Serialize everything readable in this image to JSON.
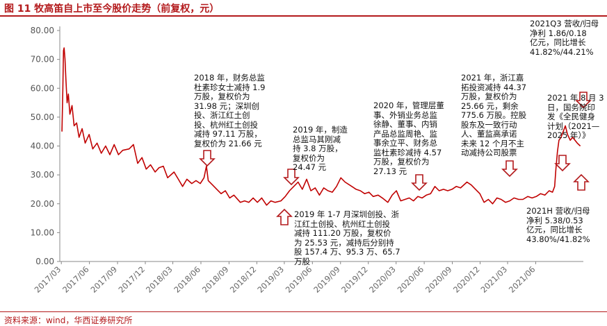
{
  "title": "图 11  牧高笛自上市至今股价走势（前复权，元）",
  "source": "资料来源：wind，华西证券研究所",
  "colors": {
    "accent": "#b3191b",
    "line": "#c00000",
    "axis": "#888888",
    "grid": "#d9d9d9"
  },
  "annotations": [
    {
      "id": "ann-2018",
      "text": "2018 年，财务总监\n杜素珍女士减持 1.9\n万股，复权价为\n31.98 元；深圳创\n投、浙江红土创\n投、杭州红土创投\n减持 97.11 万股，\n复权价为 21.66 元"
    },
    {
      "id": "ann-2019a",
      "text": "2019 年，制造\n总监马其刚减\n持 3.8 万股，\n复权价为\n24.47 元"
    },
    {
      "id": "ann-2019b",
      "text": "2019 年 1-7 月深圳创投、浙\n江红土创投、杭州红土创投\n减持 111.20 万股，复权价\n为 25.53 元，减持后分别持\n股 157.4 万、95.3 万、65.7\n万股"
    },
    {
      "id": "ann-2020",
      "text": "2020 年，管理层董\n事、外销业务总监\n徐静、董事、内销\n产品总监周艳、监\n事余立平、财务总\n监杜素珍减持 4.57\n万股，复权价为\n27.13 元"
    },
    {
      "id": "ann-2021a",
      "text": "2021 年，浙江嘉\n拓投资减持 44.37\n万股，复权价为\n25.66 元，剩余\n775.6 万股。控股\n股东及一致行动\n人、董监高承诺\n未来 12 个月不主\n动减持公司股票"
    },
    {
      "id": "ann-2021q3",
      "text": "2021Q3 营收/归母\n净利 1.86/0.18\n亿元，同比增长\n41.82%/44.21%"
    },
    {
      "id": "ann-2021aug",
      "text": "2021 年 8 月 3\n日，国务院印\n发《全民健身\n计划（2021—\n2025 年）》"
    },
    {
      "id": "ann-2021h",
      "text": "2021H 营收/归母\n净利 5.38/0.53\n亿元，同比增长\n43.80%/41.82%"
    }
  ],
  "chart_data": {
    "type": "line",
    "title": "",
    "xlabel": "",
    "ylabel": "",
    "ylim": [
      0,
      80
    ],
    "yticks": [
      "0.00",
      "10.00",
      "20.00",
      "30.00",
      "40.00",
      "50.00",
      "60.00",
      "70.00",
      "80.00"
    ],
    "xticks": [
      "2017/03",
      "2017/06",
      "2017/09",
      "2017/12",
      "2018/03",
      "2018/06",
      "2018/09",
      "2018/12",
      "2019/03",
      "2019/06",
      "2019/09",
      "2019/12",
      "2020/03",
      "2020/06",
      "2020/09",
      "2020/12",
      "2021/03",
      "2021/06"
    ],
    "grid": false,
    "legend": "none",
    "series": [
      {
        "x": [
          "2017/03/03",
          "2017/03/06",
          "2017/03/08",
          "2017/03/10",
          "2017/03/13",
          "2017/03/16",
          "2017/03/20",
          "2017/03/24",
          "2017/03/29",
          "2017/04/05",
          "2017/04/12",
          "2017/04/20",
          "2017/04/28",
          "2017/05/08",
          "2017/05/18",
          "2017/05/31",
          "2017/06/12",
          "2017/06/26",
          "2017/07/10",
          "2017/07/24",
          "2017/08/07",
          "2017/08/21",
          "2017/09/04",
          "2017/09/18",
          "2017/10/09",
          "2017/10/23",
          "2017/11/06",
          "2017/11/20",
          "2017/12/04",
          "2017/12/18",
          "2018/01/02",
          "2018/01/15",
          "2018/01/29",
          "2018/02/12",
          "2018/03/05",
          "2018/03/19",
          "2018/04/02",
          "2018/04/16",
          "2018/05/02",
          "2018/05/16",
          "2018/05/30",
          "2018/06/11",
          "2018/06/19",
          "2018/06/25",
          "2018/07/09",
          "2018/07/23",
          "2018/08/06",
          "2018/08/20",
          "2018/09/03",
          "2018/09/17",
          "2018/10/08",
          "2018/10/22",
          "2018/11/05",
          "2018/11/19",
          "2018/12/03",
          "2018/12/17",
          "2019/01/02",
          "2019/01/16",
          "2019/01/30",
          "2019/02/18",
          "2019/03/04",
          "2019/03/18",
          "2019/04/01",
          "2019/04/15",
          "2019/04/29",
          "2019/05/13",
          "2019/05/27",
          "2019/06/10",
          "2019/06/24",
          "2019/07/08",
          "2019/07/22",
          "2019/08/05",
          "2019/08/19",
          "2019/09/02",
          "2019/09/16",
          "2019/10/08",
          "2019/10/22",
          "2019/11/05",
          "2019/11/19",
          "2019/12/03",
          "2019/12/17",
          "2020/01/02",
          "2020/01/16",
          "2020/02/03",
          "2020/02/17",
          "2020/03/02",
          "2020/03/16",
          "2020/03/30",
          "2020/04/13",
          "2020/04/27",
          "2020/05/11",
          "2020/05/25",
          "2020/06/08",
          "2020/06/22",
          "2020/07/06",
          "2020/07/20",
          "2020/08/03",
          "2020/08/17",
          "2020/08/31",
          "2020/09/14",
          "2020/09/28",
          "2020/10/19",
          "2020/11/02",
          "2020/11/16",
          "2020/11/30",
          "2020/12/14",
          "2020/12/28",
          "2021/01/11",
          "2021/01/25",
          "2021/02/08",
          "2021/02/22",
          "2021/03/08",
          "2021/03/22",
          "2021/04/06",
          "2021/04/20",
          "2021/05/06",
          "2021/05/20",
          "2021/06/03",
          "2021/06/17",
          "2021/07/01",
          "2021/07/15",
          "2021/07/26",
          "2021/08/02",
          "2021/08/06",
          "2021/08/11",
          "2021/08/16",
          "2021/08/23",
          "2021/08/30",
          "2021/09/06",
          "2021/09/13",
          "2021/09/22",
          "2021/09/30",
          "2021/10/15",
          "2021/10/25"
        ],
        "values": [
          45.0,
          60.0,
          73.0,
          74.0,
          70.0,
          63.0,
          55.0,
          58.0,
          51.0,
          54.0,
          47.0,
          48.0,
          43.0,
          46.0,
          41.0,
          44.0,
          39.0,
          41.0,
          37.5,
          40.0,
          37.0,
          40.5,
          37.0,
          38.5,
          39.0,
          40.5,
          34.0,
          36.0,
          32.0,
          33.5,
          31.0,
          32.5,
          33.0,
          29.0,
          31.0,
          28.5,
          26.0,
          28.5,
          27.0,
          28.0,
          27.0,
          29.0,
          33.0,
          28.0,
          26.5,
          25.0,
          23.5,
          24.5,
          22.0,
          23.0,
          20.5,
          21.0,
          20.5,
          22.0,
          20.5,
          22.0,
          19.5,
          21.0,
          20.5,
          21.0,
          22.5,
          24.5,
          26.0,
          27.5,
          25.0,
          28.5,
          24.5,
          25.5,
          23.0,
          25.5,
          24.5,
          24.0,
          26.0,
          29.0,
          27.5,
          26.0,
          25.0,
          24.5,
          23.5,
          24.0,
          22.5,
          23.0,
          22.0,
          20.5,
          23.0,
          24.5,
          21.0,
          21.5,
          22.0,
          21.0,
          22.5,
          22.0,
          23.0,
          23.5,
          26.0,
          24.5,
          25.0,
          24.5,
          25.0,
          26.0,
          25.5,
          27.5,
          26.5,
          25.0,
          23.5,
          20.5,
          21.5,
          20.0,
          22.0,
          21.5,
          20.5,
          21.0,
          22.0,
          21.5,
          21.5,
          22.5,
          22.0,
          22.5,
          23.5,
          23.0,
          24.5,
          24.0,
          26.0,
          32.0,
          38.0,
          42.0,
          43.0,
          45.0,
          47.0,
          44.0,
          42.0,
          43.0,
          41.0,
          40.0
        ]
      }
    ]
  }
}
